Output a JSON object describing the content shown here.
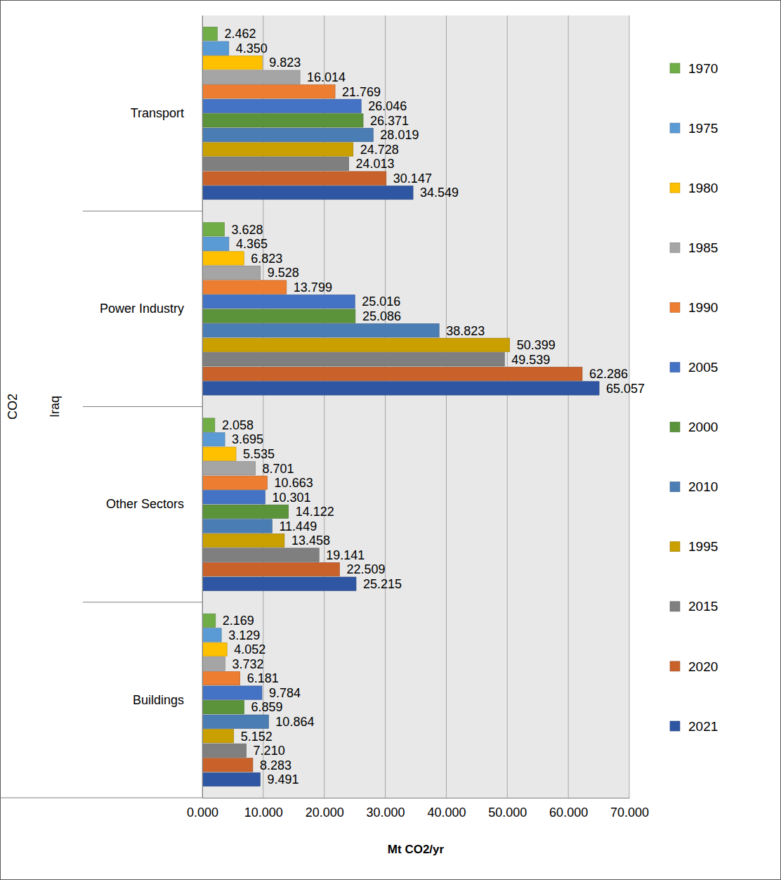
{
  "chart_data": {
    "type": "bar",
    "orientation": "horizontal",
    "data_labels": true,
    "grid": true,
    "legend": "right",
    "x_label": "Mt CO2/yr",
    "annotations": [
      {
        "text": "CO2"
      },
      {
        "text": "Iraq"
      }
    ],
    "categories": [
      "Transport",
      "Power Industry",
      "Other Sectors",
      "Buildings"
    ],
    "xlim": [
      0,
      70
    ],
    "xticks": [
      {
        "value": 0,
        "label": "0.000"
      },
      {
        "value": 10,
        "label": "10.000"
      },
      {
        "value": 20,
        "label": "20.000"
      },
      {
        "value": 30,
        "label": "30.000"
      },
      {
        "value": 40,
        "label": "40.000"
      },
      {
        "value": 50,
        "label": "50.000"
      },
      {
        "value": 60,
        "label": "60.000"
      },
      {
        "value": 70,
        "label": "70.000"
      }
    ],
    "series": [
      {
        "name": "1970",
        "color": "#70ad47",
        "values": [
          2.462,
          3.628,
          2.058,
          2.169
        ],
        "value_labels": [
          "2.462",
          "3.628",
          "2.058",
          "2.169"
        ]
      },
      {
        "name": "1975",
        "color": "#5b9bd5",
        "values": [
          4.35,
          4.365,
          3.695,
          3.129
        ],
        "value_labels": [
          "4.350",
          "4.365",
          "3.695",
          "3.129"
        ]
      },
      {
        "name": "1980",
        "color": "#ffc000",
        "values": [
          9.823,
          6.823,
          5.535,
          4.052
        ],
        "value_labels": [
          "9.823",
          "6.823",
          "5.535",
          "4.052"
        ]
      },
      {
        "name": "1985",
        "color": "#a5a5a5",
        "values": [
          16.014,
          9.528,
          8.701,
          3.732
        ],
        "value_labels": [
          "16.014",
          "9.528",
          "8.701",
          "3.732"
        ]
      },
      {
        "name": "1990",
        "color": "#ed7d31",
        "values": [
          21.769,
          13.799,
          10.663,
          6.181
        ],
        "value_labels": [
          "21.769",
          "13.799",
          "10.663",
          "6.181"
        ]
      },
      {
        "name": "2005",
        "color": "#4472c4",
        "values": [
          26.046,
          25.016,
          10.301,
          9.784
        ],
        "value_labels": [
          "26.046",
          "25.016",
          "10.301",
          "9.784"
        ]
      },
      {
        "name": "2000",
        "color": "#5a933a",
        "values": [
          26.371,
          25.086,
          14.122,
          6.859
        ],
        "value_labels": [
          "26.371",
          "25.086",
          "14.122",
          "6.859"
        ]
      },
      {
        "name": "2010",
        "color": "#4a7db3",
        "values": [
          28.019,
          38.823,
          11.449,
          10.864
        ],
        "value_labels": [
          "28.019",
          "38.823",
          "11.449",
          "10.864"
        ]
      },
      {
        "name": "1995",
        "color": "#c9a000",
        "values": [
          24.728,
          50.399,
          13.458,
          5.152
        ],
        "value_labels": [
          "24.728",
          "50.399",
          "13.458",
          "5.152"
        ]
      },
      {
        "name": "2015",
        "color": "#7f7f7f",
        "values": [
          24.013,
          49.539,
          19.141,
          7.21
        ],
        "value_labels": [
          "24.013",
          "49.539",
          "19.141",
          "7.210"
        ]
      },
      {
        "name": "2020",
        "color": "#c9622a",
        "values": [
          30.147,
          62.286,
          22.509,
          8.283
        ],
        "value_labels": [
          "30.147",
          "62.286",
          "22.509",
          "8.283"
        ]
      },
      {
        "name": "2021",
        "color": "#2f56a3",
        "values": [
          34.549,
          65.057,
          25.215,
          9.491
        ],
        "value_labels": [
          "34.549",
          "65.057",
          "25.215",
          "9.491"
        ]
      }
    ]
  }
}
